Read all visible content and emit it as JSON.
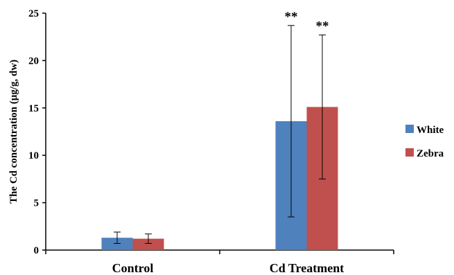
{
  "chart_data": {
    "type": "bar",
    "title": "",
    "xlabel": "",
    "ylabel": "The Cd concentration (μg/g, dw)",
    "ylim": [
      0,
      25
    ],
    "yticks": [
      0,
      5,
      10,
      15,
      20,
      25
    ],
    "categories": [
      "Control",
      "Cd Treatment"
    ],
    "series": [
      {
        "name": "White",
        "color": "#4F81BD",
        "values": [
          1.3,
          13.6
        ],
        "errors": [
          0.6,
          10.1
        ]
      },
      {
        "name": "Zebra",
        "color": "#C0504D",
        "values": [
          1.2,
          15.1
        ],
        "errors": [
          0.5,
          7.6
        ]
      }
    ],
    "annotations": [
      {
        "category": "Cd Treatment",
        "series": "White",
        "text": "**"
      },
      {
        "category": "Cd Treatment",
        "series": "Zebra",
        "text": "**"
      }
    ],
    "legend": "right",
    "grid": false
  }
}
